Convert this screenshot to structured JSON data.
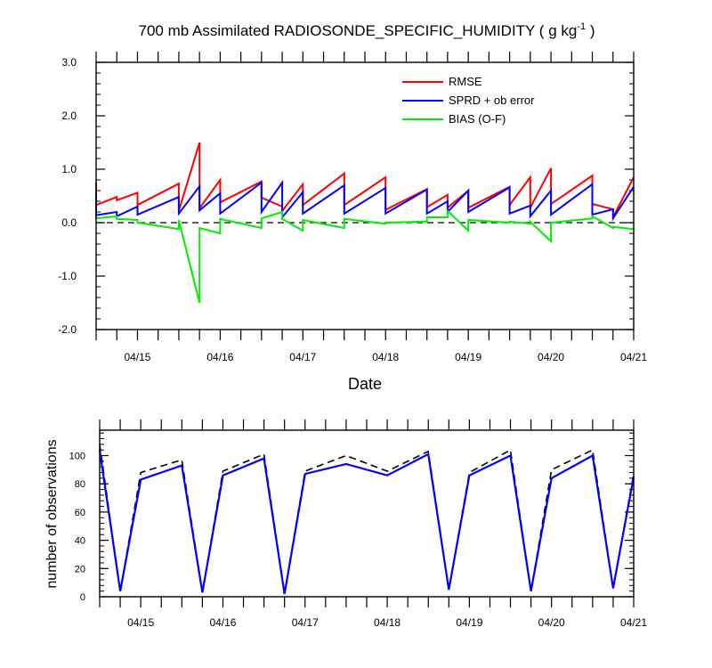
{
  "chart_data": [
    {
      "type": "line",
      "title_main": "700 mb Assimilated RADIOSONDE_SPECIFIC_HUMIDITY ( g kg",
      "title_sup": "-1",
      "title_tail": " )",
      "xlabel": "Date",
      "ylim": [
        -2.0,
        3.0
      ],
      "xlim": [
        0,
        264
      ],
      "yticks": [
        -2.0,
        -1.0,
        0.0,
        1.0,
        2.0,
        3.0
      ],
      "yticklabels": [
        "-2.0",
        "-1.0",
        "0.0",
        "1.0",
        "2.0",
        "3.0"
      ],
      "xticks": [
        12,
        36,
        60,
        84,
        108,
        132,
        156,
        180,
        204,
        228,
        252
      ],
      "xticklabels": [
        "04/15",
        "04/16",
        "04/17",
        "04/18",
        "04/19",
        "04/20",
        "04/21"
      ],
      "xticklabel_positions": [
        12,
        36,
        60,
        84,
        108,
        132,
        156
      ],
      "reference_line": 0.0,
      "legend_position": "top-right",
      "colors": {
        "RMSE": "#ff0000",
        "SPRD + ob error": "#0000ff",
        "BIAS (O-F)": "#00ee00"
      },
      "series": [
        {
          "name": "RMSE",
          "x": [
            0,
            0,
            6,
            6,
            12,
            12,
            24,
            24,
            30,
            30,
            36,
            36,
            48,
            48,
            54,
            54,
            60,
            60,
            72,
            72,
            84,
            84,
            96,
            96,
            102,
            102,
            108,
            108,
            120,
            120,
            126,
            126,
            132,
            132,
            144,
            144,
            150,
            150,
            156
          ],
          "y": [
            0.75,
            0.33,
            0.48,
            0.42,
            0.56,
            0.33,
            0.73,
            0.22,
            1.5,
            0.27,
            0.8,
            0.38,
            0.77,
            0.47,
            0.3,
            0.22,
            0.72,
            0.33,
            0.92,
            0.33,
            0.85,
            0.24,
            0.63,
            0.29,
            0.52,
            0.28,
            0.6,
            0.28,
            0.67,
            0.33,
            0.85,
            0.28,
            1.02,
            0.35,
            0.88,
            0.35,
            0.25,
            0.1,
            0.85
          ]
        },
        {
          "name": "SPRD + ob error",
          "x": [
            0,
            0,
            6,
            6,
            12,
            12,
            24,
            24,
            30,
            30,
            36,
            36,
            48,
            48,
            54,
            54,
            60,
            60,
            72,
            72,
            84,
            84,
            96,
            96,
            102,
            102,
            108,
            108,
            120,
            120,
            126,
            126,
            132,
            132,
            144,
            144,
            150,
            150,
            156
          ],
          "y": [
            0.55,
            0.14,
            0.2,
            0.12,
            0.3,
            0.15,
            0.48,
            0.17,
            0.68,
            0.23,
            0.55,
            0.17,
            0.75,
            0.2,
            0.75,
            0.1,
            0.57,
            0.17,
            0.7,
            0.17,
            0.65,
            0.17,
            0.62,
            0.17,
            0.4,
            0.2,
            0.6,
            0.2,
            0.66,
            0.17,
            0.32,
            0.12,
            0.6,
            0.15,
            0.72,
            0.15,
            0.25,
            0.08,
            0.67
          ]
        },
        {
          "name": "BIAS (O-F)",
          "x": [
            0,
            0,
            6,
            6,
            12,
            12,
            24,
            24,
            30,
            30,
            36,
            36,
            48,
            48,
            54,
            54,
            60,
            60,
            72,
            72,
            84,
            84,
            96,
            96,
            102,
            102,
            108,
            108,
            120,
            120,
            126,
            126,
            132,
            132,
            144,
            144,
            150,
            150,
            156
          ],
          "y": [
            0.12,
            0.08,
            0.12,
            0.07,
            0.05,
            0.0,
            -0.12,
            0.05,
            -1.5,
            -0.1,
            -0.2,
            0.07,
            -0.1,
            0.08,
            0.2,
            0.07,
            -0.15,
            0.05,
            -0.1,
            0.07,
            -0.02,
            0.0,
            0.02,
            0.1,
            0.1,
            0.22,
            -0.15,
            0.05,
            0.0,
            0.02,
            -0.02,
            0.02,
            -0.35,
            0.0,
            0.08,
            0.12,
            -0.1,
            -0.08,
            -0.12
          ]
        }
      ]
    },
    {
      "type": "line",
      "ylabel": "number of observations",
      "ylim": [
        0,
        118
      ],
      "xlim": [
        0,
        156
      ],
      "yticks": [
        0,
        20,
        40,
        60,
        80,
        100
      ],
      "yticklabels": [
        "0",
        "20",
        "40",
        "60",
        "80",
        "100"
      ],
      "xticklabels": [
        "04/15",
        "04/16",
        "04/17",
        "04/18",
        "04/19",
        "04/20",
        "04/21"
      ],
      "xticklabel_positions": [
        12,
        36,
        60,
        84,
        108,
        132,
        156
      ],
      "colors": {
        "assimilated": "#0000ff",
        "total": "#000000"
      },
      "series": [
        {
          "x": [
            0,
            6,
            12,
            24,
            30,
            36,
            48,
            54,
            60,
            72,
            84,
            96,
            102,
            108,
            120,
            126,
            132,
            144,
            150,
            156
          ],
          "y": [
            104,
            4,
            83,
            93,
            3,
            86,
            98,
            2,
            87,
            94,
            86,
            101,
            5,
            86,
            100,
            4,
            84,
            100,
            6,
            85
          ]
        },
        {
          "x": [
            0,
            6,
            12,
            24,
            30,
            36,
            48,
            54,
            60,
            72,
            84,
            96,
            102,
            108,
            120,
            126,
            132,
            144,
            150,
            156
          ],
          "y": [
            108,
            4,
            88,
            97,
            3,
            89,
            101,
            2,
            89,
            100,
            89,
            103,
            5,
            88,
            104,
            4,
            90,
            104,
            6,
            87
          ]
        }
      ]
    }
  ]
}
